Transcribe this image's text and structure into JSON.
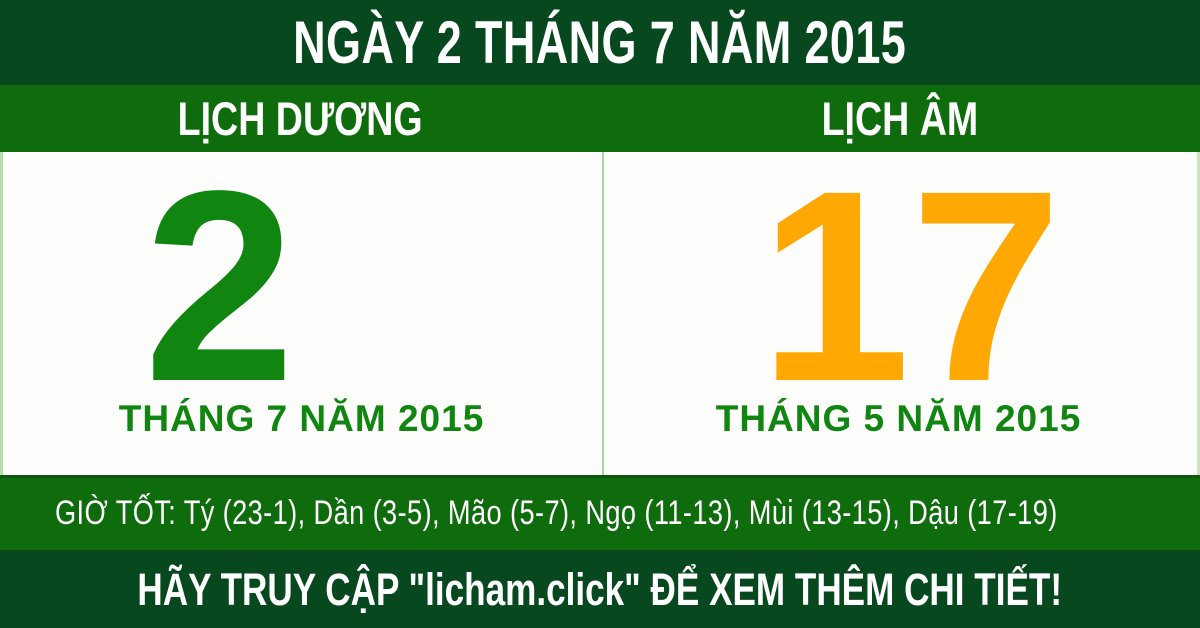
{
  "header": {
    "title": "NGÀY 2 THÁNG 7 NĂM 2015"
  },
  "columns": {
    "solar": {
      "header": "LỊCH DƯƠNG",
      "day": "2",
      "month_year": "THÁNG 7 NĂM 2015"
    },
    "lunar": {
      "header": "LỊCH ÂM",
      "day": "17",
      "month_year": "THÁNG 5 NĂM 2015"
    }
  },
  "good_hours": {
    "text": "GIỜ TỐT: Tý (23-1), Dần (3-5), Mão (5-7), Ngọ (11-13), Mùi (13-15), Dậu (17-19)"
  },
  "footer": {
    "text": "HÃY TRUY CẬP \"licham.click\" ĐỂ XEM THÊM CHI TIẾT!"
  },
  "colors": {
    "dark_green": "#07481F",
    "bar_green": "#0F6C0D",
    "day_green": "#108510",
    "day_orange": "#FFA702",
    "divider_green": "#ABD79E",
    "text_white": "#FFFFFF"
  }
}
